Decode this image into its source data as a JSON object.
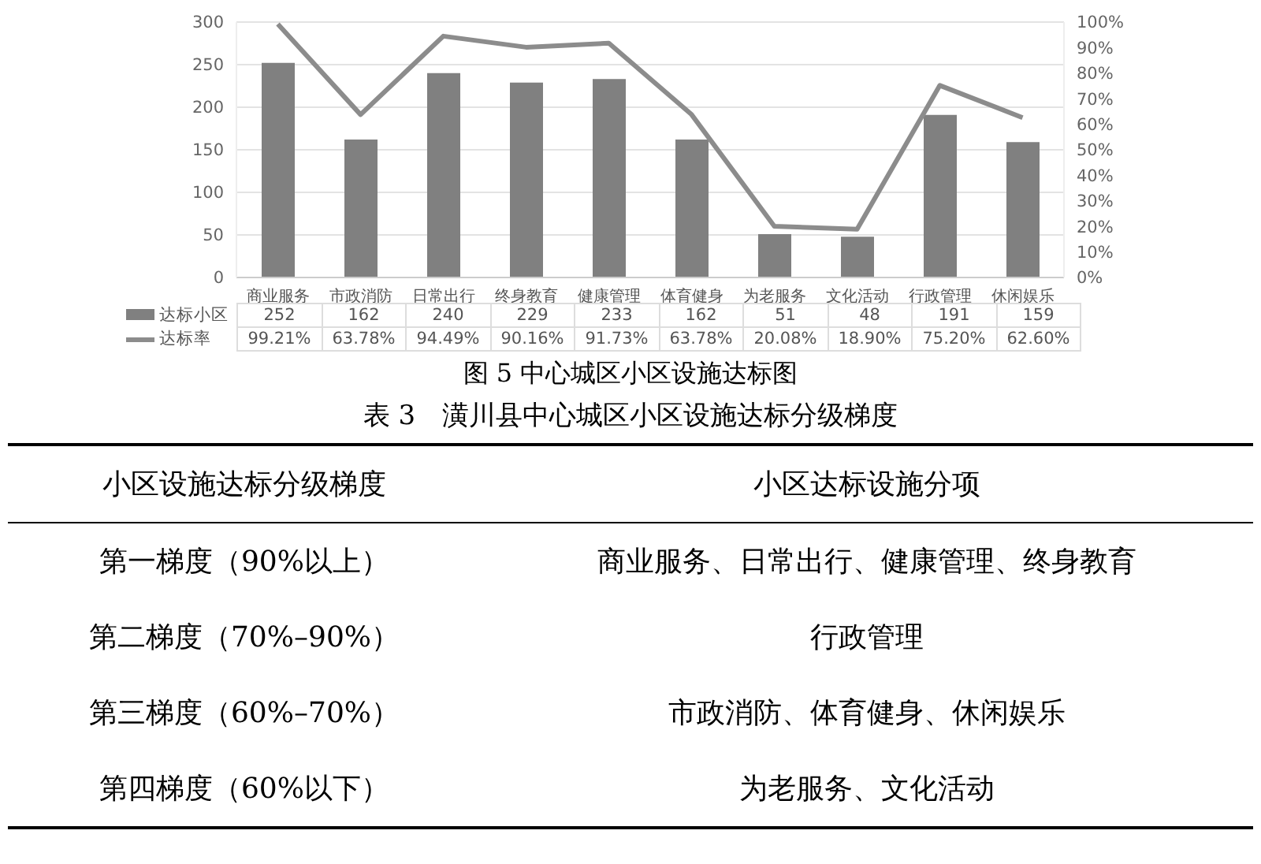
{
  "chart_data": [
    {
      "type": "bar",
      "title": "图 5 中心城区小区设施达标图",
      "categories": [
        "商业服务",
        "市政消防",
        "日常出行",
        "终身教育",
        "健康管理",
        "体育健身",
        "为老服务",
        "文化活动",
        "行政管理",
        "休闲娱乐"
      ],
      "series": [
        {
          "name": "达标小区",
          "type": "bar",
          "color": "#808080",
          "values": [
            252,
            162,
            240,
            229,
            233,
            162,
            51,
            48,
            191,
            159
          ],
          "value_labels": [
            "252",
            "162",
            "240",
            "229",
            "233",
            "162",
            "51",
            "48",
            "191",
            "159"
          ]
        },
        {
          "name": "达标率",
          "type": "line",
          "axis": "y2",
          "color": "#8c8c8c",
          "values": [
            99.21,
            63.78,
            94.49,
            90.16,
            91.73,
            63.78,
            20.08,
            18.9,
            75.2,
            62.6
          ],
          "value_labels": [
            "99.21%",
            "63.78%",
            "94.49%",
            "90.16%",
            "91.73%",
            "63.78%",
            "20.08%",
            "18.90%",
            "75.20%",
            "62.60%"
          ]
        }
      ],
      "ylim": [
        0,
        300
      ],
      "yticks": [
        0,
        50,
        100,
        150,
        200,
        250,
        300
      ],
      "y2lim": [
        0,
        100
      ],
      "y2ticks": [
        {
          "value": 0,
          "label": "0%"
        },
        {
          "value": 10,
          "label": "10%"
        },
        {
          "value": 20,
          "label": "20%"
        },
        {
          "value": 30,
          "label": "30%"
        },
        {
          "value": 40,
          "label": "40%"
        },
        {
          "value": 50,
          "label": "50%"
        },
        {
          "value": 60,
          "label": "60%"
        },
        {
          "value": 70,
          "label": "70%"
        },
        {
          "value": 80,
          "label": "80%"
        },
        {
          "value": 90,
          "label": "90%"
        },
        {
          "value": 100,
          "label": "100%"
        }
      ],
      "grid": "y",
      "legend": "bottom",
      "marker": "none",
      "line_style": "solid"
    },
    {
      "type": "other",
      "title": "表 3　潢川县中心城区小区设施达标分级梯度",
      "annotations": [
        "小区设施达标分级梯度",
        "小区达标设施分项",
        "第一梯度（90%以上）",
        "商业服务、日常出行、健康管理、终身教育",
        "第二梯度（70%–90%）",
        "行政管理",
        "第三梯度（60%–70%）",
        "市政消防、体育健身、休闲娱乐",
        "第四梯度（60%以下）",
        "为老服务、文化活动"
      ]
    }
  ]
}
